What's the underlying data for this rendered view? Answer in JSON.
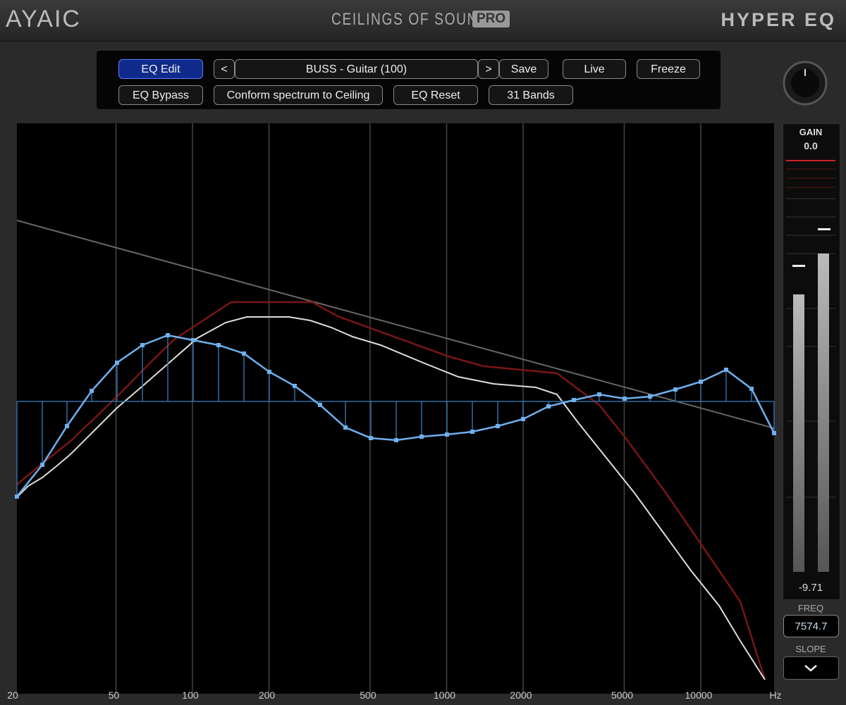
{
  "header": {
    "logo": "AYAIC",
    "product": "CEILINGS OF SOUND",
    "badge": "PRO",
    "title": "HYPER EQ"
  },
  "toolbar": {
    "eq_edit": "EQ Edit",
    "prev": "<",
    "preset": "BUSS - Guitar (100)",
    "next": ">",
    "save": "Save",
    "live": "Live",
    "freeze": "Freeze",
    "eq_bypass": "EQ Bypass",
    "conform": "Conform spectrum to Ceiling",
    "eq_reset": "EQ Reset",
    "bands": "31 Bands"
  },
  "side_panel": {
    "gain_label": "GAIN",
    "gain_value": "0.0",
    "meter_value": "-9.71",
    "freq_label": "FREQ",
    "freq_value": "7574.7",
    "slope_label": "SLOPE"
  },
  "frequency_axis": {
    "ticks": [
      20,
      50,
      100,
      200,
      500,
      1000,
      2000,
      5000,
      10000
    ],
    "unit": "Hz"
  }
}
